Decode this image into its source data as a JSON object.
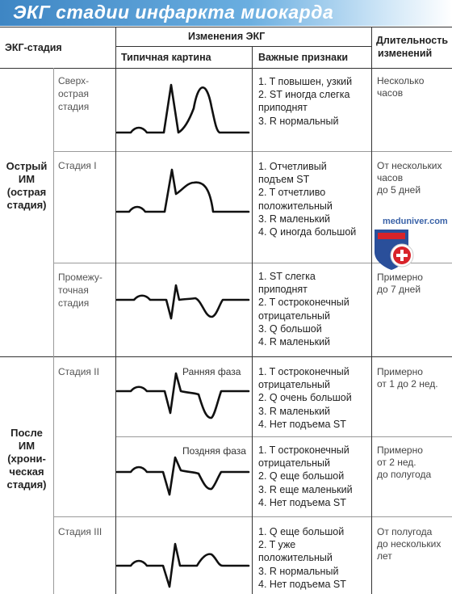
{
  "title": "ЭКГ стадии инфаркта миокарда",
  "header": {
    "stage_col": "ЭКГ-стадия",
    "changes_col": "Изменения ЭКГ",
    "typical_col": "Типичная картина",
    "signs_col": "Важные признаки",
    "duration_col": [
      "Длительность",
      "изменений"
    ]
  },
  "groups": {
    "acute": [
      "Острый",
      "ИМ",
      "(острая",
      "стадия)"
    ],
    "chronic": [
      "После",
      "ИМ",
      "(хрони-",
      "ческая",
      "стадия)"
    ]
  },
  "rows": [
    {
      "sub": [
        "Сверх-",
        "острая",
        "стадия"
      ],
      "signs": [
        "1.  T повышен, узкий",
        "2.  ST иногда слегка",
        "     приподнят",
        "3.  R нормальный"
      ],
      "duration": [
        "Несколько",
        "часов"
      ]
    },
    {
      "sub": [
        "Стадия I"
      ],
      "signs": [
        "1.  Отчетливый",
        "     подъем ST",
        "2.  T отчетливо",
        "     положительный",
        "3.  R маленький",
        "4.  Q иногда большой"
      ],
      "duration": [
        "От нескольких",
        "часов",
        "до 5 дней"
      ]
    },
    {
      "sub": [
        "Промежу-",
        "точная",
        "стадия"
      ],
      "signs": [
        "1.  ST слегка",
        "     приподнят",
        "2.  T остроконечный",
        "     отрицательный",
        "3.  Q большой",
        "4.  R маленький"
      ],
      "duration": [
        "Примерно",
        "до 7 дней"
      ]
    },
    {
      "sub": [
        "Стадия II"
      ],
      "phase": "Ранняя фаза",
      "signs": [
        "1.  T остроконечный",
        "     отрицательный",
        "2.  Q очень большой",
        "3.  R маленький",
        "4.  Нет подъема ST"
      ],
      "duration": [
        "Примерно",
        "от 1 до 2 нед."
      ]
    },
    {
      "sub": [],
      "phase": "Поздняя фаза",
      "signs": [
        "1.  T остроконечный",
        "     отрицательный",
        "2.  Q еще большой",
        "3.  R еще маленький",
        "4.  Нет подъема ST"
      ],
      "duration": [
        "Примерно",
        "от 2 нед.",
        "до полугода"
      ]
    },
    {
      "sub": [
        "Стадия III"
      ],
      "signs": [
        "1.  Q еще большой",
        "2.  T уже",
        "     положительный",
        "3.  R нормальный",
        "4.  Нет подъема ST"
      ],
      "duration": [
        "От полугода",
        "до нескольких",
        "лет"
      ]
    }
  ],
  "watermark": "meduniver.com",
  "colors": {
    "title_bar": "#4a90d0",
    "line": "#222222",
    "logo_red": "#d8232a",
    "logo_blue": "#2a4f9a"
  }
}
